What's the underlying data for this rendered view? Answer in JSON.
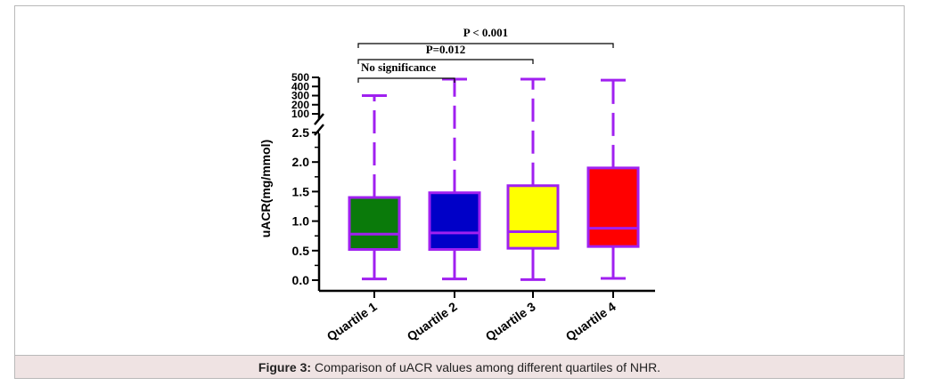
{
  "figure": {
    "caption_label": "Figure 3:",
    "caption_text": "Comparison of uACR values among different quartiles of NHR."
  },
  "chart_data": {
    "type": "box",
    "ylabel": "uACR(mg/mmol)",
    "xlabel": "",
    "categories": [
      "Quartile 1",
      "Quartile 2",
      "Quartile 3",
      "Quartile 4"
    ],
    "colors": [
      "#0a7a0a",
      "#0000c8",
      "#ffff00",
      "#ff0000"
    ],
    "outline_color": "#a020f0",
    "boxes": [
      {
        "category": "Quartile 1",
        "min": 0.02,
        "q1": 0.52,
        "median": 0.78,
        "q3": 1.4,
        "max": 300
      },
      {
        "category": "Quartile 2",
        "min": 0.02,
        "q1": 0.52,
        "median": 0.8,
        "q3": 1.48,
        "max": 480
      },
      {
        "category": "Quartile 3",
        "min": 0.01,
        "q1": 0.54,
        "median": 0.82,
        "q3": 1.6,
        "max": 480
      },
      {
        "category": "Quartile 4",
        "min": 0.03,
        "q1": 0.57,
        "median": 0.88,
        "q3": 1.9,
        "max": 470
      }
    ],
    "y_axis": {
      "lower_segment": {
        "range": [
          0,
          2.5
        ],
        "ticks": [
          "0.0",
          "0.5",
          "1.0",
          "1.5",
          "2.0",
          "2.5"
        ],
        "tick_values": [
          0,
          0.5,
          1.0,
          1.5,
          2.0,
          2.5
        ]
      },
      "upper_segment": {
        "range": [
          100,
          500
        ],
        "ticks": [
          "100",
          "200",
          "300",
          "400",
          "500"
        ],
        "tick_values": [
          100,
          200,
          300,
          400,
          500
        ]
      },
      "broken": true
    },
    "annotations": [
      {
        "from": "Quartile 1",
        "to": "Quartile 2",
        "text": "No significance"
      },
      {
        "from": "Quartile 1",
        "to": "Quartile 3",
        "text": "P=0.012"
      },
      {
        "from": "Quartile 1",
        "to": "Quartile 4",
        "text": "P < 0.001"
      }
    ]
  }
}
